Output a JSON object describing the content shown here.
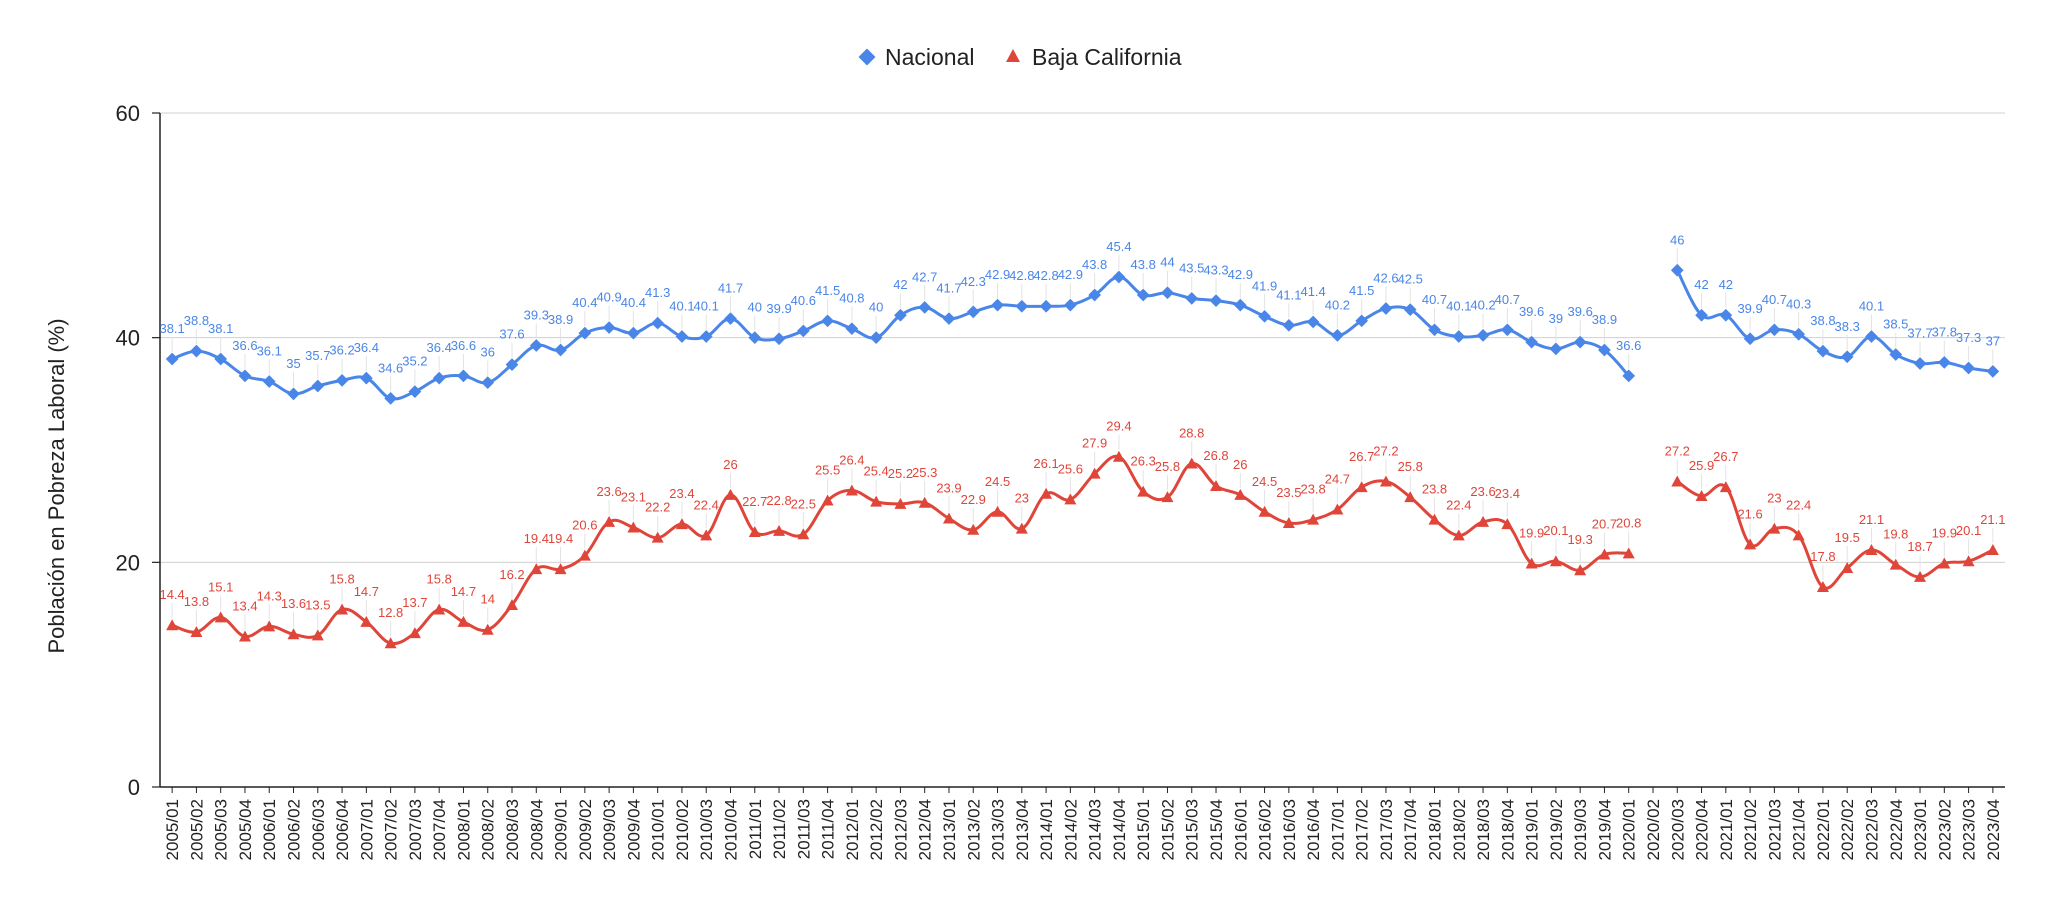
{
  "chart_data": {
    "type": "line",
    "title": "",
    "xlabel": "",
    "ylabel": "Población en Pobreza Laboral (%)",
    "ylim": [
      0,
      60
    ],
    "yticks": [
      0,
      20,
      40,
      60
    ],
    "grid": true,
    "legend_position": "top-center",
    "categories": [
      "2005/01",
      "2005/02",
      "2005/03",
      "2005/04",
      "2006/01",
      "2006/02",
      "2006/03",
      "2006/04",
      "2007/01",
      "2007/02",
      "2007/03",
      "2007/04",
      "2008/01",
      "2008/02",
      "2008/03",
      "2008/04",
      "2009/01",
      "2009/02",
      "2009/03",
      "2009/04",
      "2010/01",
      "2010/02",
      "2010/03",
      "2010/04",
      "2011/01",
      "2011/02",
      "2011/03",
      "2011/04",
      "2012/01",
      "2012/02",
      "2012/03",
      "2012/04",
      "2013/01",
      "2013/02",
      "2013/03",
      "2013/04",
      "2014/01",
      "2014/02",
      "2014/03",
      "2014/04",
      "2015/01",
      "2015/02",
      "2015/03",
      "2015/04",
      "2016/01",
      "2016/02",
      "2016/03",
      "2016/04",
      "2017/01",
      "2017/02",
      "2017/03",
      "2017/04",
      "2018/01",
      "2018/02",
      "2018/03",
      "2018/04",
      "2019/01",
      "2019/02",
      "2019/03",
      "2019/04",
      "2020/01",
      "2020/02",
      "2020/03",
      "2020/04",
      "2021/01",
      "2021/02",
      "2021/03",
      "2021/04",
      "2022/01",
      "2022/02",
      "2022/03",
      "2022/04",
      "2023/01",
      "2023/02",
      "2023/03",
      "2023/04"
    ],
    "series": [
      {
        "name": "Nacional",
        "color": "#4a86e8",
        "marker": "diamond",
        "values": [
          38.1,
          38.8,
          38.1,
          36.6,
          36.1,
          35,
          35.7,
          36.2,
          36.4,
          34.6,
          35.2,
          36.4,
          36.6,
          36,
          37.6,
          39.3,
          38.9,
          40.4,
          40.9,
          40.4,
          41.3,
          40.1,
          40.1,
          41.7,
          40,
          39.9,
          40.6,
          41.5,
          40.8,
          40,
          42,
          42.7,
          41.7,
          42.3,
          42.9,
          42.8,
          42.8,
          42.9,
          43.8,
          45.4,
          43.8,
          44,
          43.5,
          43.3,
          42.9,
          41.9,
          41.1,
          41.4,
          40.2,
          41.5,
          42.6,
          42.5,
          40.7,
          40.1,
          40.2,
          40.7,
          39.6,
          39,
          39.6,
          38.9,
          36.6,
          null,
          46,
          42,
          42,
          39.9,
          40.7,
          40.3,
          38.8,
          38.3,
          40.1,
          38.5,
          37.7,
          37.8,
          37.3,
          37
        ],
        "labels": [
          "38.1",
          "38.8",
          "38.1",
          "36.6",
          "36.1",
          "35",
          "35.7",
          "36.2",
          "36.4",
          "34.6",
          "35.2",
          "36.4",
          "36.6",
          "36",
          "37.6",
          "39.3",
          "38.9",
          "40.4",
          "40.9",
          "40.4",
          "41.3",
          "40.1",
          "40.1",
          "41.7",
          "40",
          "39.9",
          "40.6",
          "41.5",
          "40.8",
          "40",
          "42",
          "42.7",
          "41.7",
          "42.3",
          "42.9",
          "42.8",
          "42.8",
          "42.9",
          "43.8",
          "45.4",
          "43.8",
          "44",
          "43.5",
          "43.3",
          "42.9",
          "41.9",
          "41.1",
          "41.4",
          "40.2",
          "41.5",
          "42.6",
          "42.5",
          "40.7",
          "40.1",
          "40.2",
          "40.7",
          "39.6",
          "39",
          "39.6",
          "38.9",
          "36.6",
          "",
          "46",
          "42",
          "42",
          "39.9",
          "40.7",
          "40.3",
          "38.8",
          "38.3",
          "40.1",
          "38.5",
          "37.7",
          "37.8",
          "37.3",
          "37"
        ]
      },
      {
        "name": "Baja California",
        "color": "#e0453a",
        "marker": "triangle",
        "values": [
          14.4,
          13.8,
          15.1,
          13.4,
          14.3,
          13.6,
          13.5,
          15.8,
          14.7,
          12.8,
          13.7,
          15.8,
          14.7,
          14,
          16.2,
          19.4,
          19.4,
          20.6,
          23.6,
          23.1,
          22.2,
          23.4,
          22.4,
          26,
          22.7,
          22.8,
          22.5,
          25.5,
          26.4,
          25.4,
          25.2,
          25.3,
          23.9,
          22.9,
          24.5,
          23,
          26.1,
          25.6,
          27.9,
          29.4,
          26.3,
          25.8,
          28.8,
          26.8,
          26,
          24.5,
          23.5,
          23.8,
          24.7,
          26.7,
          27.2,
          25.8,
          23.8,
          22.4,
          23.6,
          23.4,
          19.9,
          20.1,
          19.3,
          20.7,
          20.8,
          null,
          27.2,
          25.9,
          26.7,
          21.6,
          23,
          22.4,
          17.8,
          19.5,
          21.1,
          19.8,
          18.7,
          19.9,
          20.1,
          21.1
        ],
        "labels": [
          "14.4",
          "13.8",
          "15.1",
          "13.4",
          "14.3",
          "13.6",
          "13.5",
          "15.8",
          "14.7",
          "12.8",
          "13.7",
          "15.8",
          "14.7",
          "14",
          "16.2",
          "19.4",
          "19.4",
          "20.6",
          "23.6",
          "23.1",
          "22.2",
          "23.4",
          "22.4",
          "26",
          "22.7",
          "22.8",
          "22.5",
          "25.5",
          "26.4",
          "25.4",
          "25.2",
          "25.3",
          "23.9",
          "22.9",
          "24.5",
          "23",
          "26.1",
          "25.6",
          "27.9",
          "29.4",
          "26.3",
          "25.8",
          "28.8",
          "26.8",
          "26",
          "24.5",
          "23.5",
          "23.8",
          "24.7",
          "26.7",
          "27.2",
          "25.8",
          "23.8",
          "22.4",
          "23.6",
          "23.4",
          "19.9",
          "20.1",
          "19.3",
          "20.7",
          "20.8",
          "",
          "27.2",
          "25.9",
          "26.7",
          "21.6",
          "23",
          "22.4",
          "17.8",
          "19.5",
          "21.1",
          "19.8",
          "18.7",
          "19.9",
          "20.1",
          "21.1"
        ]
      }
    ]
  }
}
